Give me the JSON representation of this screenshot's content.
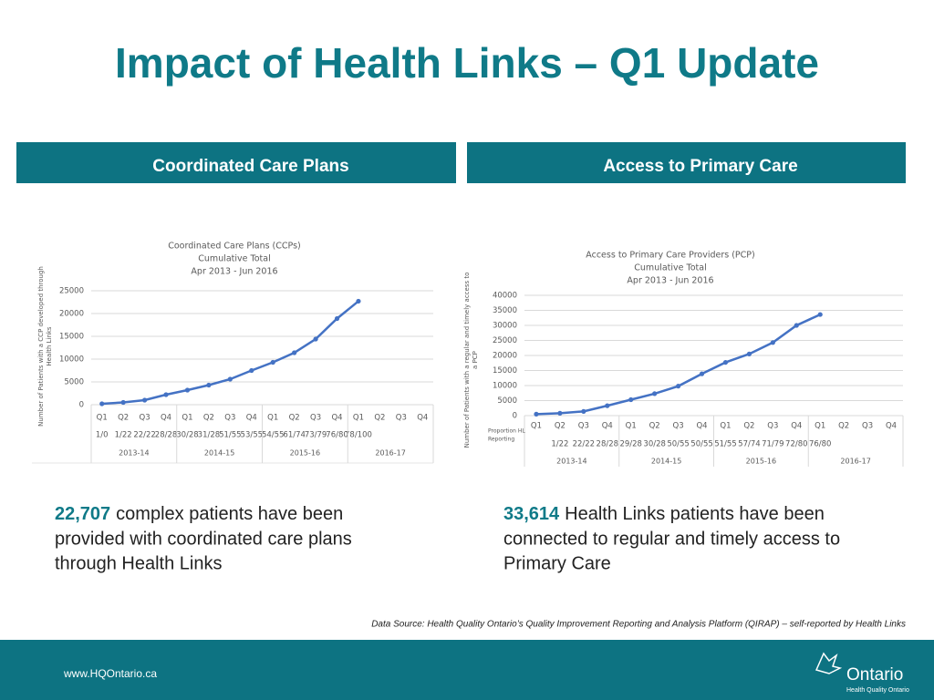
{
  "slide": {
    "title": "Impact of Health Links – Q1 Update",
    "panels": [
      "Coordinated Care Plans",
      "Access to Primary Care"
    ],
    "captions": [
      {
        "highlight": "22,707",
        "lines": [
          "complex patients have been",
          "provided with coordinated care plans",
          "through Health Links"
        ]
      },
      {
        "highlight": "33,614",
        "lines": [
          "Health Links patients have been",
          "connected to regular and timely access to",
          "Primary Care"
        ]
      }
    ],
    "source": "Data Source:  Health Quality Ontario’s Quality Improvement Reporting and Analysis Platform (QIRAP) – self-reported by Health Links",
    "footer": "www.HQOntario.ca",
    "logo": "Ontario",
    "logo_sub": "Health Quality Ontario"
  },
  "chart_data": [
    {
      "type": "line",
      "title_lines": [
        "Coordinated Care Plans (CCPs)",
        "Cumulative Total",
        "Apr 2013 - Jun 2016"
      ],
      "y_label": [
        "Number of Patients with a CCP developed through",
        "Health Links"
      ],
      "categories": [
        "Q1",
        "Q2",
        "Q3",
        "Q4",
        "Q1",
        "Q2",
        "Q3",
        "Q4",
        "Q1",
        "Q2",
        "Q3",
        "Q4",
        "Q1",
        "Q2",
        "Q3",
        "Q4"
      ],
      "sub_labels": [
        "1/0",
        "1/22",
        "22/22",
        "28/28",
        "30/28",
        "31/28",
        "51/55",
        "53/55",
        "54/55",
        "61/74",
        "73/79",
        "76/80",
        "78/100",
        null,
        null,
        null
      ],
      "groups": [
        "2013-14",
        "2014-15",
        "2015-16",
        "2016-17"
      ],
      "values": [
        200,
        500,
        1000,
        2200,
        3200,
        4300,
        5600,
        7500,
        9300,
        11400,
        14400,
        18900,
        22707,
        null,
        null,
        null
      ],
      "color": "#4472c4",
      "ylim": [
        0,
        25000
      ],
      "yticks": [
        0,
        5000,
        10000,
        15000,
        20000,
        25000
      ],
      "grid": true
    },
    {
      "type": "line",
      "title_lines": [
        "Access to Primary Care Providers (PCP)",
        "Cumulative Total",
        "Apr 2013 - Jun 2016"
      ],
      "y_label": [
        "Number of Patients with a regular and timely access to",
        "a PCP"
      ],
      "row_label": [
        "Proportion HL",
        "Reporting"
      ],
      "categories": [
        "Q1",
        "Q2",
        "Q3",
        "Q4",
        "Q1",
        "Q2",
        "Q3",
        "Q4",
        "Q1",
        "Q2",
        "Q3",
        "Q4",
        "Q1",
        "Q2",
        "Q3",
        "Q4"
      ],
      "sub_labels": [
        null,
        "1/22",
        "22/22",
        "28/28",
        "29/28",
        "30/28",
        "50/55",
        "50/55",
        "51/55",
        "57/74",
        "71/79",
        "72/80",
        "76/80",
        null,
        null,
        null
      ],
      "groups": [
        "2013-14",
        "2014-15",
        "2015-16",
        "2016-17"
      ],
      "values": [
        500,
        800,
        1400,
        3300,
        5300,
        7300,
        9800,
        13900,
        17700,
        20500,
        24300,
        30000,
        33614,
        null,
        null,
        null
      ],
      "color": "#4472c4",
      "ylim": [
        0,
        40000
      ],
      "yticks": [
        0,
        5000,
        10000,
        15000,
        20000,
        25000,
        30000,
        35000,
        40000
      ],
      "grid": true
    }
  ]
}
